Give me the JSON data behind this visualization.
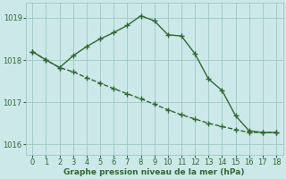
{
  "line1_x": [
    0,
    1,
    2,
    3,
    4,
    5,
    6,
    7,
    8,
    9,
    10,
    11,
    12,
    13,
    14,
    15,
    16,
    17,
    18
  ],
  "line1_y": [
    1018.2,
    1018.0,
    1017.82,
    1018.1,
    1018.32,
    1018.5,
    1018.65,
    1018.82,
    1019.05,
    1018.93,
    1018.6,
    1018.57,
    1018.15,
    1017.55,
    1017.28,
    1016.68,
    1016.32,
    1016.28,
    1016.28
  ],
  "line2_x": [
    0,
    1,
    2,
    3,
    4,
    5,
    6,
    7,
    8,
    9,
    10,
    11,
    12,
    13,
    14,
    15,
    16,
    17,
    18
  ],
  "line2_y": [
    1018.2,
    1018.0,
    1017.82,
    1017.72,
    1017.58,
    1017.45,
    1017.32,
    1017.2,
    1017.08,
    1016.95,
    1016.82,
    1016.7,
    1016.6,
    1016.5,
    1016.42,
    1016.35,
    1016.28,
    1016.28,
    1016.28
  ],
  "line_color": "#2d6a2d",
  "bg_color": "#cce8e8",
  "grid_color": "#9dc8c8",
  "xlabel": "Graphe pression niveau de la mer (hPa)",
  "ylim": [
    1015.75,
    1019.35
  ],
  "yticks": [
    1016,
    1017,
    1018,
    1019
  ],
  "xticks": [
    0,
    1,
    2,
    3,
    4,
    5,
    6,
    7,
    8,
    9,
    10,
    11,
    12,
    13,
    14,
    15,
    16,
    17,
    18
  ],
  "marker": "+",
  "marker_size": 4,
  "linewidth": 1.0,
  "xlabel_fontsize": 6.5,
  "tick_fontsize": 6.0
}
